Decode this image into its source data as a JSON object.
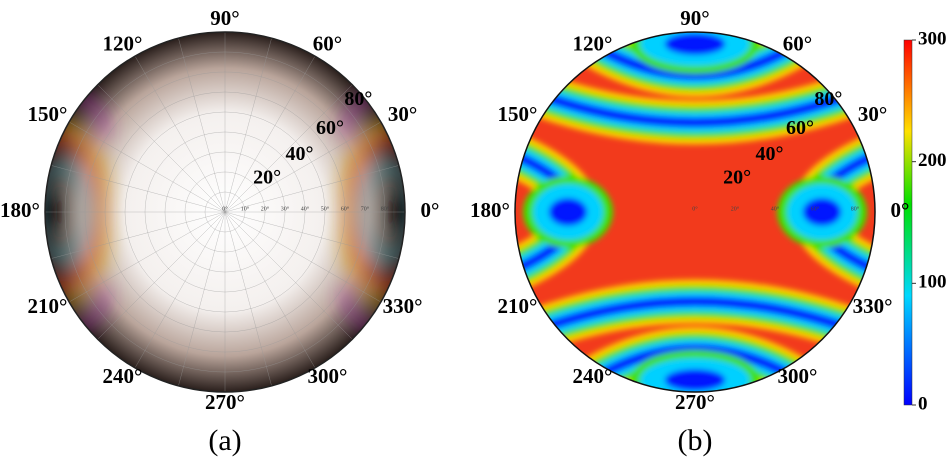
{
  "panels": [
    {
      "label": "(a)",
      "azimuth_labels": [
        "0°",
        "30°",
        "60°",
        "90°",
        "120°",
        "150°",
        "180°",
        "210°",
        "240°",
        "270°",
        "300°",
        "330°"
      ],
      "radial_labels": [
        "20°",
        "40°",
        "60°",
        "80°"
      ],
      "axis_labels": [
        "0°",
        "10°",
        "20°",
        "30°",
        "40°",
        "50°",
        "60°",
        "70°",
        "80°"
      ]
    },
    {
      "label": "(b)",
      "azimuth_labels": [
        "0°",
        "30°",
        "60°",
        "90°",
        "120°",
        "150°",
        "180°",
        "210°",
        "240°",
        "270°",
        "300°",
        "330°"
      ],
      "radial_labels": [
        "20°",
        "40°",
        "60°",
        "80°"
      ],
      "axis_labels": [
        "0°",
        "20°",
        "40°",
        "60°",
        "80°"
      ]
    }
  ],
  "colorbar": {
    "range": [
      0,
      300
    ],
    "ticks": [
      0,
      100,
      200,
      300
    ]
  }
}
